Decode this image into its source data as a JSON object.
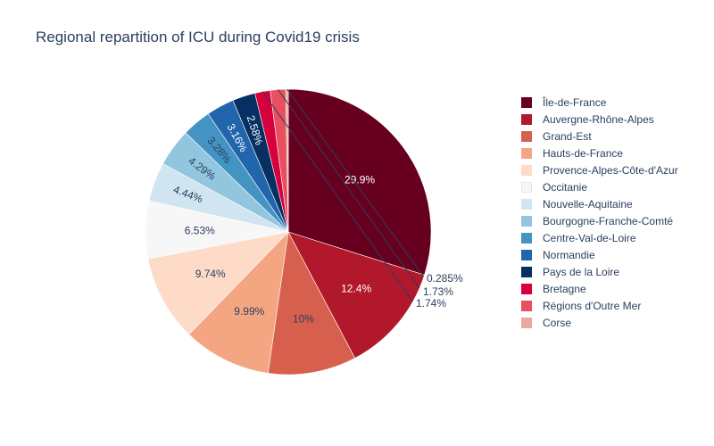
{
  "chart_data": {
    "type": "pie",
    "title": "Regional repartition of ICU during Covid19 crisis",
    "legend_position": "right",
    "slices": [
      {
        "label": "Île-de-France",
        "value": 29.9,
        "text": "29.9%",
        "color": "#67001f",
        "text_color": "#ffffff"
      },
      {
        "label": "Auvergne-Rhône-Alpes",
        "value": 12.4,
        "text": "12.4%",
        "color": "#b2182b",
        "text_color": "#ffffff"
      },
      {
        "label": "Grand-Est",
        "value": 10.0,
        "text": "10%",
        "color": "#d6604d",
        "text_color": "#2a3f5f"
      },
      {
        "label": "Hauts-de-France",
        "value": 9.99,
        "text": "9.99%",
        "color": "#f4a582",
        "text_color": "#2a3f5f"
      },
      {
        "label": "Provence-Alpes-Côte-d'Azur",
        "value": 9.74,
        "text": "9.74%",
        "color": "#fddbc7",
        "text_color": "#2a3f5f"
      },
      {
        "label": "Occitanie",
        "value": 6.53,
        "text": "6.53%",
        "color": "#f7f7f7",
        "text_color": "#2a3f5f"
      },
      {
        "label": "Nouvelle-Aquitaine",
        "value": 4.44,
        "text": "4.44%",
        "color": "#d1e5f0",
        "text_color": "#2a3f5f"
      },
      {
        "label": "Bourgogne-Franche-Comté",
        "value": 4.29,
        "text": "4.29%",
        "color": "#92c5de",
        "text_color": "#2a3f5f"
      },
      {
        "label": "Centre-Val-de-Loire",
        "value": 3.28,
        "text": "3.28%",
        "color": "#4393c3",
        "text_color": "#2a3f5f"
      },
      {
        "label": "Normandie",
        "value": 3.16,
        "text": "3.16%",
        "color": "#2166ac",
        "text_color": "#ffffff"
      },
      {
        "label": "Pays de la Loire",
        "value": 2.58,
        "text": "2.58%",
        "color": "#053061",
        "text_color": "#ffffff"
      },
      {
        "label": "Bretagne",
        "value": 1.74,
        "text": "1.74%",
        "color": "#d6003f",
        "text_color": "#2a3f5f"
      },
      {
        "label": "Régions d'Outre Mer",
        "value": 1.73,
        "text": "1.73%",
        "color": "#e8505f",
        "text_color": "#2a3f5f"
      },
      {
        "label": "Corse",
        "value": 0.285,
        "text": "0.285%",
        "color": "#e8aaa0",
        "text_color": "#2a3f5f"
      }
    ]
  }
}
